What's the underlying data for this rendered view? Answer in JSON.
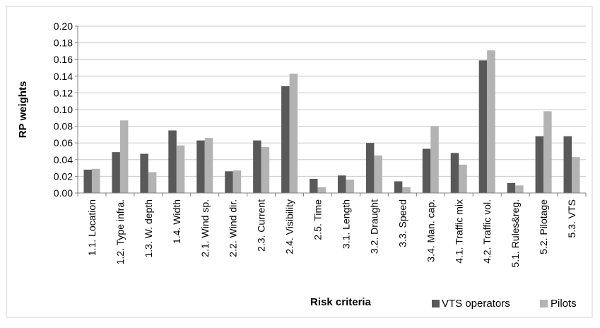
{
  "chart_data": {
    "type": "bar",
    "title": "",
    "xlabel": "Risk criteria",
    "ylabel": "RP weights",
    "ylim": [
      0,
      0.2
    ],
    "yticks": [
      "0.00",
      "0.02",
      "0.04",
      "0.06",
      "0.08",
      "0.10",
      "0.12",
      "0.14",
      "0.16",
      "0.18",
      "0.20"
    ],
    "grid": true,
    "legend_position": "bottom-right",
    "categories": [
      "1.1. Location",
      "1.2. Type infra.",
      "1.3. W. depth",
      "1.4. Width",
      "2.1. Wind sp.",
      "2.2. Wind dir.",
      "2.3. Current",
      "2.4. Visibility",
      "2.5. Time",
      "3.1. Length",
      "3.2. Draught",
      "3.3. Speed",
      "3.4. Man. cap.",
      "4.1. Traffic mix",
      "4.2. Traffic vol.",
      "5.1. Rules&reg.",
      "5.2. Pilotage",
      "5.3. VTS"
    ],
    "series": [
      {
        "name": "VTS operators",
        "color": "#595959",
        "values": [
          0.028,
          0.049,
          0.047,
          0.075,
          0.063,
          0.026,
          0.063,
          0.128,
          0.017,
          0.021,
          0.06,
          0.014,
          0.053,
          0.048,
          0.159,
          0.012,
          0.068,
          0.068
        ]
      },
      {
        "name": "Pilots",
        "color": "#b3b3b3",
        "values": [
          0.029,
          0.087,
          0.025,
          0.057,
          0.066,
          0.027,
          0.055,
          0.143,
          0.007,
          0.016,
          0.045,
          0.007,
          0.08,
          0.034,
          0.171,
          0.009,
          0.098,
          0.043
        ]
      }
    ]
  }
}
